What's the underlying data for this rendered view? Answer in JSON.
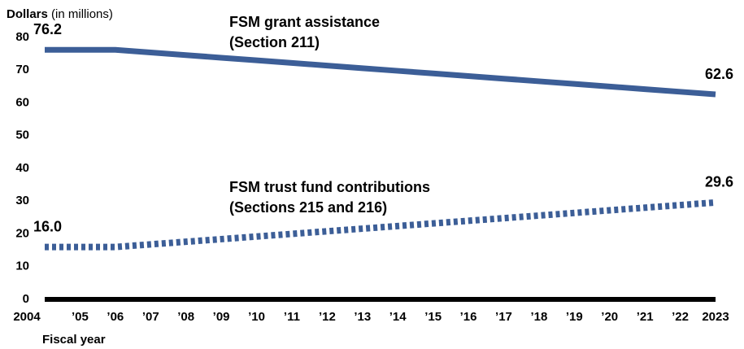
{
  "chart_data": {
    "type": "line",
    "y_label": "Dollars",
    "y_label_note": "(in millions)",
    "x_label": "Fiscal year",
    "categories": [
      "2004",
      "’05",
      "’06",
      "’07",
      "’08",
      "’09",
      "’10",
      "’11",
      "’12",
      "’13",
      "’14",
      "’15",
      "’16",
      "’17",
      "’18",
      "’19",
      "’20",
      "’21",
      "’22",
      "2023"
    ],
    "series": [
      {
        "color": "#3c5e97",
        "style": "solid",
        "values": [
          76.2,
          76.2,
          76.2,
          75.4,
          74.6,
          73.8,
          73.0,
          72.2,
          71.4,
          70.6,
          69.8,
          69.0,
          68.2,
          67.4,
          66.6,
          65.8,
          65.0,
          64.2,
          63.4,
          62.6
        ],
        "value_labels": [
          "76.2",
          null,
          null,
          null,
          null,
          null,
          null,
          null,
          null,
          null,
          null,
          null,
          null,
          null,
          null,
          null,
          null,
          null,
          null,
          "62.6"
        ]
      },
      {
        "color": "#3c5e97",
        "style": "dotted",
        "values": [
          16.0,
          16.0,
          16.0,
          16.8,
          17.6,
          18.4,
          19.2,
          20.0,
          20.8,
          21.6,
          22.4,
          23.2,
          24.0,
          24.8,
          25.6,
          26.4,
          27.2,
          28.0,
          28.8,
          29.6
        ],
        "value_labels": [
          "16.0",
          null,
          null,
          null,
          null,
          null,
          null,
          null,
          null,
          null,
          null,
          null,
          null,
          null,
          null,
          null,
          null,
          null,
          null,
          "29.6"
        ]
      }
    ],
    "annotations": [
      {
        "lines": [
          "FSM grant assistance",
          "(Section 211)"
        ]
      },
      {
        "lines": [
          "FSM trust fund contributions",
          "(Sections 215 and 216)"
        ]
      }
    ],
    "ylim": [
      0,
      80
    ],
    "yticks": [
      0,
      10,
      20,
      30,
      40,
      50,
      60,
      70,
      80
    ],
    "grid": false
  }
}
